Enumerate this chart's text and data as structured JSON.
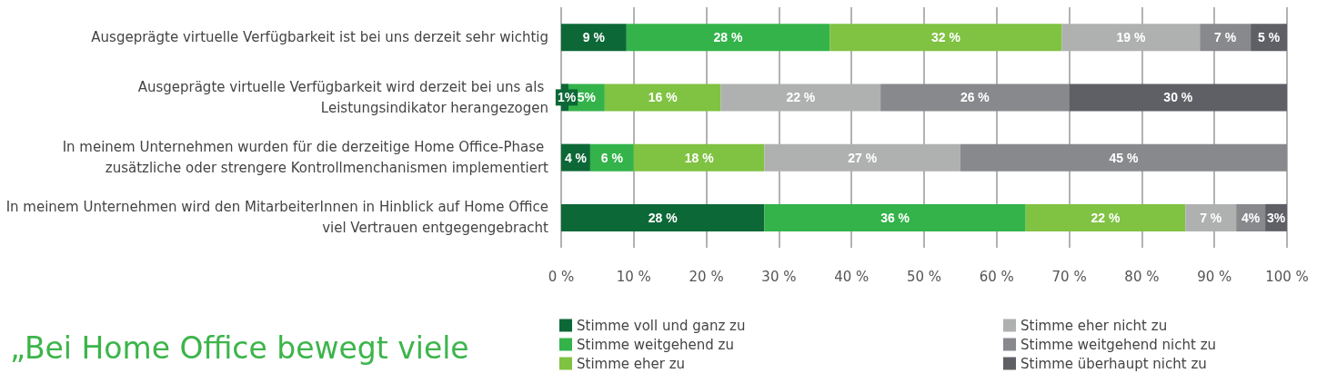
{
  "chart_data": {
    "type": "bar",
    "orientation": "horizontal",
    "stacked": true,
    "title": "„Bei Home Office bewegt viele",
    "categories": [
      "Ausgeprägte virtuelle Verfügbarkeit ist bei uns derzeit sehr wichtig",
      "Ausgeprägte virtuelle Verfügbarkeit wird derzeit bei uns als Leistungsindikator herangezogen",
      "In meinem Unternehmen wurden für die derzeitige Home Office-Phase zusätzliche oder strengere Kontrollmenchanismen implementiert",
      "In meinem Unternehmen wird den MitarbeiterInnen in Hinblick auf Home Office viel Vertrauen entgegengebracht"
    ],
    "series": [
      {
        "name": "Stimme voll und ganz zu",
        "color": "#0d6837",
        "values": [
          9,
          1,
          4,
          28
        ],
        "value_labels": [
          "9 %",
          "1%",
          "4 %",
          "28 %"
        ]
      },
      {
        "name": "Stimme weitgehend zu",
        "color": "#33b34a",
        "values": [
          28,
          5,
          6,
          36
        ],
        "value_labels": [
          "28 %",
          "5%",
          "6 %",
          "36 %"
        ]
      },
      {
        "name": "Stimme eher zu",
        "color": "#80c242",
        "values": [
          32,
          16,
          18,
          22
        ],
        "value_labels": [
          "32 %",
          "16 %",
          "18 %",
          "22 %"
        ]
      },
      {
        "name": "Stimme eher nicht zu",
        "color": "#afb1b1",
        "values": [
          19,
          22,
          27,
          7
        ],
        "value_labels": [
          "19 %",
          "22 %",
          "27 %",
          "7 %"
        ]
      },
      {
        "name": "Stimme weitgehend nicht zu",
        "color": "#87898c",
        "values": [
          7,
          26,
          45,
          4
        ],
        "value_labels": [
          "7 %",
          "26 %",
          "45 %",
          "4%"
        ]
      },
      {
        "name": "Stimme überhaupt nicht zu",
        "color": "#5e6066",
        "values": [
          5,
          30,
          null,
          3
        ],
        "value_labels": [
          "5 %",
          "30 %",
          null,
          "3%"
        ]
      }
    ],
    "xlim": [
      0,
      100
    ],
    "xticks": [
      {
        "value": 0,
        "label": "0 %"
      },
      {
        "value": 10,
        "label": "10 %"
      },
      {
        "value": 20,
        "label": "20 %"
      },
      {
        "value": 30,
        "label": "30 %"
      },
      {
        "value": 40,
        "label": "40 %"
      },
      {
        "value": 50,
        "label": "50 %"
      },
      {
        "value": 60,
        "label": "60 %"
      },
      {
        "value": 70,
        "label": "70 %"
      },
      {
        "value": 80,
        "label": "80 %"
      },
      {
        "value": 90,
        "label": "90 %"
      },
      {
        "value": 100,
        "label": "100 %"
      }
    ],
    "grid": "x",
    "legend": "bottom"
  }
}
